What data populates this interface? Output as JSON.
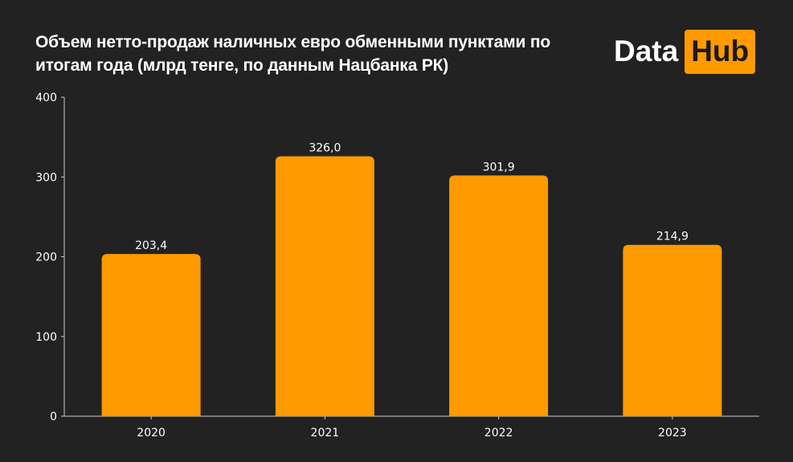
{
  "title": "Объем нетто-продаж наличных евро обменными пунктами по итогам года (млрд тенге, по данным Нацбанка РК)",
  "brand": {
    "word": "Data",
    "box": "Hub"
  },
  "colors": {
    "background": "#222222",
    "bar": "#ff9a00",
    "axis": "#cccccc",
    "text": "#ffffff"
  },
  "chart_data": {
    "type": "bar",
    "categories": [
      "2020",
      "2021",
      "2022",
      "2023"
    ],
    "values": [
      203.4,
      326.0,
      301.9,
      214.9
    ],
    "data_labels": [
      "203,4",
      "326,0",
      "301,9",
      "214,9"
    ],
    "title": "Объем нетто-продаж наличных евро обменными пунктами по итогам года (млрд тенге, по данным Нацбанка РК)",
    "xlabel": "",
    "ylabel": "",
    "ylim": [
      0,
      400
    ],
    "yticks": [
      0,
      100,
      200,
      300,
      400
    ],
    "grid": false,
    "legend": "none"
  }
}
